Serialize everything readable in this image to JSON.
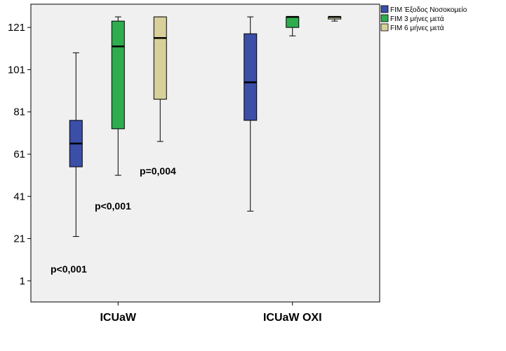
{
  "chart_data": {
    "type": "boxplot",
    "title": "",
    "xlabel": "",
    "ylabel": "",
    "ylim": [
      -9,
      132
    ],
    "yticks": [
      1,
      21,
      41,
      61,
      81,
      101,
      121
    ],
    "ytick_labels": [
      "1",
      "21",
      "41",
      "61",
      "81",
      "101",
      "121"
    ],
    "categories": [
      "ICUaW",
      "ICUaW OXI"
    ],
    "legend_position": "top-right",
    "series": [
      {
        "name": "FIM Έξοδος Νοσοκομείο",
        "color": "#3b4ea8",
        "boxes": [
          {
            "whisker_low": 22,
            "q1": 55,
            "median": 66,
            "q3": 77,
            "whisker_high": 109
          },
          {
            "whisker_low": 34,
            "q1": 77,
            "median": 95,
            "q3": 118,
            "whisker_high": 126
          }
        ]
      },
      {
        "name": "FIM 3 μήνες μετά",
        "color": "#2fac4e",
        "boxes": [
          {
            "whisker_low": 51,
            "q1": 73,
            "median": 112,
            "q3": 124,
            "whisker_high": 126
          },
          {
            "whisker_low": 117,
            "q1": 121,
            "median": 126,
            "q3": 126,
            "whisker_high": 126
          }
        ]
      },
      {
        "name": "FIM 6 μήνες μετά",
        "color": "#d8d09a",
        "boxes": [
          {
            "whisker_low": 67,
            "q1": 87,
            "median": 116,
            "q3": 126,
            "whisker_high": 126
          },
          {
            "whisker_low": 124,
            "q1": 125,
            "median": 126,
            "q3": 126,
            "whisker_high": 126
          }
        ]
      }
    ],
    "annotations": [
      {
        "text": "p<0,001"
      },
      {
        "text": "p<0,001"
      },
      {
        "text": "p=0,004"
      }
    ]
  }
}
